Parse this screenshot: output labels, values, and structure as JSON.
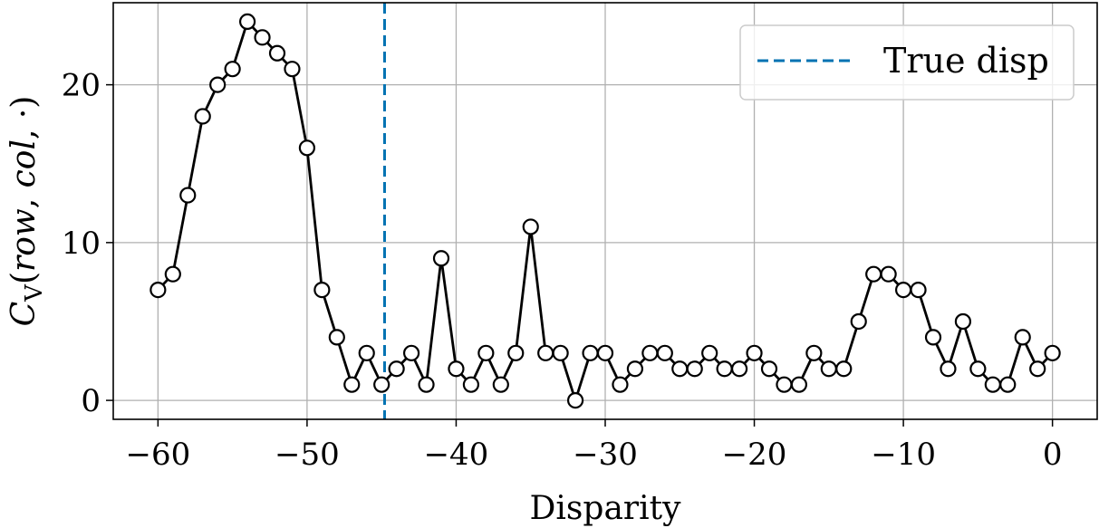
{
  "chart_data": {
    "type": "line",
    "title": "",
    "xlabel": "Disparity",
    "ylabel": "C_V(row, col, ·)",
    "xlim": [
      -63,
      3
    ],
    "ylim": [
      -1.2,
      25.2
    ],
    "xticks": [
      -60,
      -50,
      -40,
      -30,
      -20,
      -10,
      0
    ],
    "xtick_labels": [
      "−60",
      "−50",
      "−40",
      "−30",
      "−20",
      "−10",
      "0"
    ],
    "yticks": [
      0,
      10,
      20
    ],
    "ytick_labels": [
      "0",
      "10",
      "20"
    ],
    "grid": true,
    "legend_position": "top-right",
    "series": [
      {
        "values": [
          {
            "x": -60,
            "y": 7
          },
          {
            "x": -59,
            "y": 8
          },
          {
            "x": -58,
            "y": 13
          },
          {
            "x": -57,
            "y": 18
          },
          {
            "x": -56,
            "y": 20
          },
          {
            "x": -55,
            "y": 21
          },
          {
            "x": -54,
            "y": 24
          },
          {
            "x": -53,
            "y": 23
          },
          {
            "x": -52,
            "y": 22
          },
          {
            "x": -51,
            "y": 21
          },
          {
            "x": -50,
            "y": 16
          },
          {
            "x": -49,
            "y": 7
          },
          {
            "x": -48,
            "y": 4
          },
          {
            "x": -47,
            "y": 1
          },
          {
            "x": -46,
            "y": 3
          },
          {
            "x": -45,
            "y": 1
          },
          {
            "x": -44,
            "y": 2
          },
          {
            "x": -43,
            "y": 3
          },
          {
            "x": -42,
            "y": 1
          },
          {
            "x": -41,
            "y": 9
          },
          {
            "x": -40,
            "y": 2
          },
          {
            "x": -39,
            "y": 1
          },
          {
            "x": -38,
            "y": 3
          },
          {
            "x": -37,
            "y": 1
          },
          {
            "x": -36,
            "y": 3
          },
          {
            "x": -35,
            "y": 11
          },
          {
            "x": -34,
            "y": 3
          },
          {
            "x": -33,
            "y": 3
          },
          {
            "x": -32,
            "y": 0
          },
          {
            "x": -31,
            "y": 3
          },
          {
            "x": -30,
            "y": 3
          },
          {
            "x": -29,
            "y": 1
          },
          {
            "x": -28,
            "y": 2
          },
          {
            "x": -27,
            "y": 3
          },
          {
            "x": -26,
            "y": 3
          },
          {
            "x": -25,
            "y": 2
          },
          {
            "x": -24,
            "y": 2
          },
          {
            "x": -23,
            "y": 3
          },
          {
            "x": -22,
            "y": 2
          },
          {
            "x": -21,
            "y": 2
          },
          {
            "x": -20,
            "y": 3
          },
          {
            "x": -19,
            "y": 2
          },
          {
            "x": -18,
            "y": 1
          },
          {
            "x": -17,
            "y": 1
          },
          {
            "x": -16,
            "y": 3
          },
          {
            "x": -15,
            "y": 2
          },
          {
            "x": -14,
            "y": 2
          },
          {
            "x": -13,
            "y": 5
          },
          {
            "x": -12,
            "y": 8
          },
          {
            "x": -11,
            "y": 8
          },
          {
            "x": -10,
            "y": 7
          },
          {
            "x": -9,
            "y": 7
          },
          {
            "x": -8,
            "y": 4
          },
          {
            "x": -7,
            "y": 2
          },
          {
            "x": -6,
            "y": 5
          },
          {
            "x": -5,
            "y": 2
          },
          {
            "x": -4,
            "y": 1
          },
          {
            "x": -3,
            "y": 1
          },
          {
            "x": -2,
            "y": 4
          },
          {
            "x": -1,
            "y": 2
          },
          {
            "x": 0,
            "y": 3
          }
        ],
        "color": "#000000",
        "marker": "open-circle"
      }
    ],
    "vline": {
      "x": -44.8,
      "label": "True disp",
      "color": "#0072b2",
      "style": "dashed"
    }
  }
}
